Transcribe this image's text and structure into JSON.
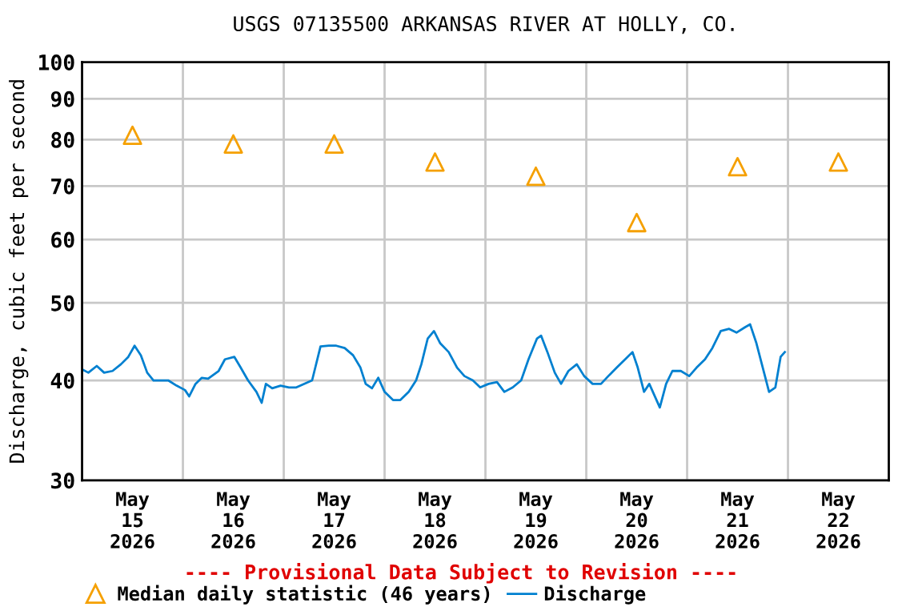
{
  "chart_data": {
    "type": "line",
    "title": "USGS 07135500 ARKANSAS RIVER AT HOLLY, CO.",
    "ylabel": "Discharge, cubic feet per second",
    "log": "y",
    "grid": true,
    "legend": "bottom",
    "xlim": [
      "2026-05-15T00:00",
      "2026-05-23T00:00"
    ],
    "xticks": [
      {
        "value": "2026-05-15T00:00",
        "label": null
      },
      {
        "value": "2026-05-15T12:00",
        "label": "May\n15\n2026"
      },
      {
        "value": "2026-05-16T00:00",
        "label": null
      },
      {
        "value": "2026-05-16T12:00",
        "label": "May\n16\n2026"
      },
      {
        "value": "2026-05-17T00:00",
        "label": null
      },
      {
        "value": "2026-05-17T12:00",
        "label": "May\n17\n2026"
      },
      {
        "value": "2026-05-18T00:00",
        "label": null
      },
      {
        "value": "2026-05-18T12:00",
        "label": "May\n18\n2026"
      },
      {
        "value": "2026-05-19T00:00",
        "label": null
      },
      {
        "value": "2026-05-19T12:00",
        "label": "May\n19\n2026"
      },
      {
        "value": "2026-05-20T00:00",
        "label": null
      },
      {
        "value": "2026-05-20T12:00",
        "label": "May\n20\n2026"
      },
      {
        "value": "2026-05-21T00:00",
        "label": null
      },
      {
        "value": "2026-05-21T12:00",
        "label": "May\n21\n2026"
      },
      {
        "value": "2026-05-22T00:00",
        "label": null
      },
      {
        "value": "2026-05-22T12:00",
        "label": "May\n22\n2026"
      }
    ],
    "ylim": [
      30,
      100
    ],
    "yticks": [
      30,
      40,
      50,
      60,
      70,
      80,
      90,
      100
    ],
    "annotations": [
      "---- Provisional Data Subject to Revision ----"
    ],
    "series": [
      {
        "name": "Median daily statistic (46 years)",
        "type": "scatter",
        "marker": "triangle",
        "color": "#f5a000",
        "x": [
          "2026-05-15T12:00",
          "2026-05-16T12:00",
          "2026-05-17T12:00",
          "2026-05-18T12:00",
          "2026-05-19T12:00",
          "2026-05-20T12:00",
          "2026-05-21T12:00",
          "2026-05-22T12:00"
        ],
        "values": [
          81,
          79,
          79,
          75,
          72,
          63,
          74,
          75
        ]
      },
      {
        "name": "Discharge",
        "color": "#0080d0",
        "x": [
          "2026-05-15T00:00",
          "2026-05-15T01:30",
          "2026-05-15T03:30",
          "2026-05-15T05:15",
          "2026-05-15T07:15",
          "2026-05-15T09:15",
          "2026-05-15T11:00",
          "2026-05-15T12:30",
          "2026-05-15T14:00",
          "2026-05-15T15:30",
          "2026-05-15T17:00",
          "2026-05-15T18:45",
          "2026-05-15T20:30",
          "2026-05-15T22:30",
          "2026-05-16T00:30",
          "2026-05-16T01:30",
          "2026-05-16T03:00",
          "2026-05-16T04:30",
          "2026-05-16T06:00",
          "2026-05-16T08:30",
          "2026-05-16T10:00",
          "2026-05-16T12:15",
          "2026-05-16T13:45",
          "2026-05-16T15:30",
          "2026-05-16T17:30",
          "2026-05-16T18:45",
          "2026-05-16T19:45",
          "2026-05-16T21:15",
          "2026-05-16T23:15",
          "2026-05-17T01:15",
          "2026-05-17T03:00",
          "2026-05-17T06:45",
          "2026-05-17T08:45",
          "2026-05-17T10:45",
          "2026-05-17T12:30",
          "2026-05-17T14:30",
          "2026-05-17T16:30",
          "2026-05-17T18:15",
          "2026-05-17T19:30",
          "2026-05-17T21:00",
          "2026-05-17T22:30",
          "2026-05-18T00:00",
          "2026-05-18T02:00",
          "2026-05-18T03:45",
          "2026-05-18T05:45",
          "2026-05-18T07:30",
          "2026-05-18T08:45",
          "2026-05-18T10:15",
          "2026-05-18T11:45",
          "2026-05-18T13:15",
          "2026-05-18T15:15",
          "2026-05-18T17:15",
          "2026-05-18T19:00",
          "2026-05-18T21:00",
          "2026-05-18T22:45",
          "2026-05-19T00:45",
          "2026-05-19T02:45",
          "2026-05-19T04:30",
          "2026-05-19T06:30",
          "2026-05-19T08:30",
          "2026-05-19T10:15",
          "2026-05-19T12:15",
          "2026-05-19T13:15",
          "2026-05-19T14:45",
          "2026-05-19T16:30",
          "2026-05-19T18:00",
          "2026-05-19T19:45",
          "2026-05-19T21:45",
          "2026-05-19T23:30",
          "2026-05-20T01:30",
          "2026-05-20T03:30",
          "2026-05-20T05:15",
          "2026-05-20T07:15",
          "2026-05-20T09:15",
          "2026-05-20T11:00",
          "2026-05-20T12:15",
          "2026-05-20T13:45",
          "2026-05-20T15:00",
          "2026-05-20T17:30",
          "2026-05-20T19:00",
          "2026-05-20T20:30",
          "2026-05-20T22:30",
          "2026-05-21T00:30",
          "2026-05-21T02:15",
          "2026-05-21T04:15",
          "2026-05-21T06:00",
          "2026-05-21T08:00",
          "2026-05-21T10:00",
          "2026-05-21T11:45",
          "2026-05-21T13:45",
          "2026-05-21T15:00",
          "2026-05-21T16:30",
          "2026-05-21T18:00",
          "2026-05-21T19:30",
          "2026-05-21T21:00",
          "2026-05-21T22:15",
          "2026-05-21T23:15"
        ],
        "values": [
          41.3,
          40.9,
          41.7,
          40.9,
          41.1,
          41.9,
          42.8,
          44.2,
          43.0,
          40.9,
          40.0,
          40.0,
          40.0,
          39.4,
          38.9,
          38.2,
          39.6,
          40.3,
          40.2,
          41.1,
          42.5,
          42.8,
          41.5,
          40.0,
          38.7,
          37.5,
          39.6,
          39.1,
          39.4,
          39.2,
          39.2,
          40.0,
          44.1,
          44.2,
          44.2,
          43.9,
          43.0,
          41.5,
          39.6,
          39.1,
          40.3,
          38.7,
          37.8,
          37.8,
          38.7,
          40.0,
          41.9,
          45.1,
          46.1,
          44.5,
          43.4,
          41.5,
          40.5,
          40.0,
          39.2,
          39.6,
          39.8,
          38.7,
          39.2,
          40.0,
          42.5,
          45.1,
          45.5,
          43.4,
          40.9,
          39.6,
          41.1,
          41.9,
          40.5,
          39.6,
          39.6,
          40.5,
          41.5,
          42.5,
          43.4,
          41.5,
          38.7,
          39.6,
          37.0,
          39.6,
          41.1,
          41.1,
          40.5,
          41.5,
          42.5,
          43.9,
          46.1,
          46.4,
          45.9,
          46.6,
          47.0,
          44.5,
          41.5,
          38.7,
          39.2,
          42.8,
          43.4
        ]
      }
    ]
  }
}
